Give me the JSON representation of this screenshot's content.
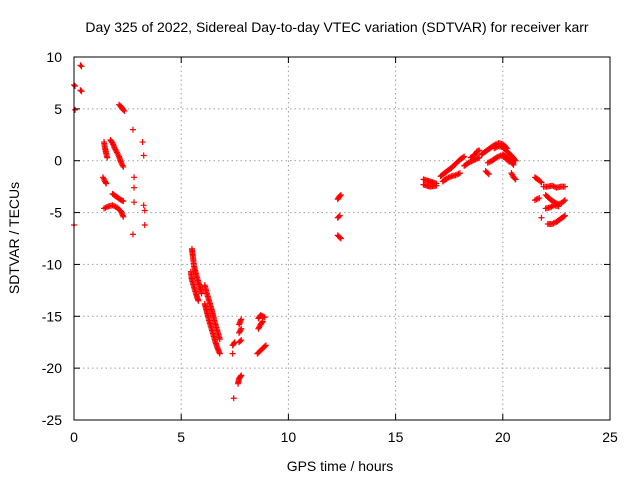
{
  "chart_data": {
    "type": "scatter",
    "title": "Day 325 of 2022, Sidereal Day-to-day VTEC variation (SDTVAR) for receiver karr",
    "xlabel": "GPS time / hours",
    "ylabel": "SDTVAR / TECUs",
    "xlim": [
      0,
      25
    ],
    "ylim": [
      -25,
      10
    ],
    "xticks": [
      0,
      5,
      10,
      15,
      20,
      25
    ],
    "yticks": [
      10,
      5,
      0,
      -5,
      -10,
      -15,
      -20,
      -25
    ],
    "grid": true,
    "marker": "plus",
    "color": "#ff0000",
    "series": [
      {
        "name": "SDTVAR",
        "tracks": [
          [
            [
              0.3,
              9.2
            ],
            [
              0.35,
              9.1
            ]
          ],
          [
            [
              0.0,
              7.3
            ],
            [
              0.05,
              7.2
            ]
          ],
          [
            [
              0.3,
              6.8
            ],
            [
              0.35,
              6.7
            ]
          ],
          [
            [
              0.05,
              4.9
            ]
          ],
          [
            [
              0.0,
              -6.2
            ]
          ],
          [
            [
              1.4,
              1.8
            ],
            [
              1.45,
              1.2
            ],
            [
              1.5,
              0.7
            ],
            [
              1.55,
              0.3
            ]
          ],
          [
            [
              1.7,
              2.0
            ],
            [
              1.8,
              1.7
            ],
            [
              1.9,
              1.2
            ],
            [
              2.0,
              0.8
            ],
            [
              2.1,
              0.4
            ],
            [
              2.2,
              -0.2
            ],
            [
              2.3,
              -0.6
            ]
          ],
          [
            [
              2.1,
              5.4
            ],
            [
              2.2,
              5.2
            ],
            [
              2.3,
              4.9
            ],
            [
              2.35,
              4.8
            ]
          ],
          [
            [
              1.35,
              -1.6
            ],
            [
              1.45,
              -2.0
            ],
            [
              1.5,
              -2.2
            ]
          ],
          [
            [
              1.8,
              -3.2
            ],
            [
              2.0,
              -3.5
            ],
            [
              2.2,
              -3.8
            ],
            [
              2.3,
              -3.9
            ]
          ],
          [
            [
              1.4,
              -4.6
            ],
            [
              1.6,
              -4.4
            ],
            [
              1.8,
              -4.3
            ],
            [
              2.0,
              -4.5
            ],
            [
              2.2,
              -4.9
            ],
            [
              2.3,
              -5.4
            ]
          ],
          [
            [
              2.75,
              3.0
            ]
          ],
          [
            [
              3.2,
              1.8
            ]
          ],
          [
            [
              3.25,
              0.5
            ]
          ],
          [
            [
              2.8,
              -1.6
            ]
          ],
          [
            [
              2.8,
              -2.6
            ]
          ],
          [
            [
              2.8,
              -4.0
            ]
          ],
          [
            [
              3.25,
              -4.3
            ]
          ],
          [
            [
              3.3,
              -4.8
            ]
          ],
          [
            [
              3.3,
              -6.2
            ]
          ],
          [
            [
              2.75,
              -7.1
            ]
          ],
          [
            [
              5.5,
              -8.5
            ],
            [
              5.55,
              -9.3
            ],
            [
              5.6,
              -10.2
            ],
            [
              5.7,
              -11.0
            ],
            [
              5.8,
              -11.7
            ],
            [
              5.9,
              -12.3
            ],
            [
              5.95,
              -12.8
            ]
          ],
          [
            [
              5.45,
              -10.7
            ],
            [
              5.5,
              -11.5
            ],
            [
              5.6,
              -12.2
            ],
            [
              5.7,
              -12.9
            ],
            [
              5.8,
              -13.5
            ]
          ],
          [
            [
              6.1,
              -13.8
            ],
            [
              6.2,
              -14.6
            ],
            [
              6.3,
              -15.4
            ],
            [
              6.4,
              -16.1
            ],
            [
              6.5,
              -16.8
            ],
            [
              6.6,
              -17.5
            ],
            [
              6.7,
              -18.1
            ],
            [
              6.8,
              -18.6
            ]
          ],
          [
            [
              6.1,
              -12.0
            ],
            [
              6.2,
              -12.8
            ],
            [
              6.3,
              -13.5
            ],
            [
              6.4,
              -14.2
            ],
            [
              6.5,
              -15.0
            ],
            [
              6.6,
              -15.8
            ],
            [
              6.7,
              -16.5
            ],
            [
              6.8,
              -17.2
            ]
          ],
          [
            [
              7.4,
              -17.8
            ],
            [
              7.5,
              -17.5
            ]
          ],
          [
            [
              7.4,
              -18.6
            ]
          ],
          [
            [
              7.45,
              -22.9
            ]
          ],
          [
            [
              7.7,
              -15.8
            ],
            [
              7.8,
              -15.3
            ]
          ],
          [
            [
              7.7,
              -16.6
            ],
            [
              7.8,
              -16.2
            ]
          ],
          [
            [
              7.7,
              -17.5
            ],
            [
              7.8,
              -17.3
            ]
          ],
          [
            [
              7.65,
              -21.5
            ],
            [
              7.7,
              -21.0
            ],
            [
              7.8,
              -20.7
            ]
          ],
          [
            [
              8.6,
              -15.2
            ],
            [
              8.7,
              -14.9
            ],
            [
              8.8,
              -15.0
            ],
            [
              8.9,
              -15.1
            ]
          ],
          [
            [
              8.6,
              -16.2
            ],
            [
              8.7,
              -15.8
            ],
            [
              8.8,
              -15.5
            ]
          ],
          [
            [
              8.55,
              -18.6
            ],
            [
              8.7,
              -18.3
            ],
            [
              8.85,
              -18.0
            ],
            [
              8.95,
              -17.8
            ]
          ],
          [
            [
              12.3,
              -3.7
            ],
            [
              12.4,
              -3.4
            ],
            [
              12.45,
              -3.3
            ]
          ],
          [
            [
              12.3,
              -5.5
            ],
            [
              12.4,
              -5.3
            ]
          ],
          [
            [
              12.3,
              -7.2
            ],
            [
              12.4,
              -7.4
            ],
            [
              12.45,
              -7.5
            ]
          ],
          [
            [
              16.3,
              -1.8
            ],
            [
              16.6,
              -2.0
            ],
            [
              16.9,
              -2.2
            ]
          ],
          [
            [
              16.3,
              -2.3
            ],
            [
              16.6,
              -2.5
            ],
            [
              16.9,
              -2.4
            ]
          ],
          [
            [
              17.1,
              -1.5
            ],
            [
              17.4,
              -1.0
            ],
            [
              17.6,
              -0.7
            ],
            [
              17.8,
              -0.3
            ],
            [
              18.0,
              0.1
            ],
            [
              18.2,
              0.4
            ]
          ],
          [
            [
              17.2,
              -2.0
            ],
            [
              17.4,
              -1.7
            ],
            [
              17.6,
              -1.5
            ],
            [
              17.8,
              -1.4
            ],
            [
              18.0,
              -1.2
            ]
          ],
          [
            [
              18.2,
              -0.5
            ],
            [
              18.4,
              -0.2
            ],
            [
              18.6,
              0.0
            ],
            [
              18.8,
              0.2
            ],
            [
              18.9,
              0.3
            ]
          ],
          [
            [
              18.5,
              0.3
            ],
            [
              18.6,
              0.4
            ],
            [
              18.7,
              0.6
            ],
            [
              18.8,
              0.9
            ],
            [
              18.9,
              1.0
            ]
          ],
          [
            [
              19.0,
              0.6
            ],
            [
              19.2,
              0.9
            ],
            [
              19.4,
              1.2
            ],
            [
              19.6,
              1.5
            ],
            [
              19.8,
              1.7
            ],
            [
              20.0,
              1.6
            ],
            [
              20.2,
              1.2
            ]
          ],
          [
            [
              19.3,
              -0.2
            ],
            [
              19.5,
              0.0
            ],
            [
              19.7,
              0.3
            ],
            [
              19.9,
              0.5
            ],
            [
              20.1,
              0.3
            ],
            [
              20.3,
              -0.1
            ]
          ],
          [
            [
              19.6,
              1.2
            ],
            [
              19.8,
              1.4
            ],
            [
              20.0,
              1.3
            ],
            [
              20.2,
              0.9
            ],
            [
              20.4,
              0.5
            ],
            [
              20.6,
              0.0
            ]
          ],
          [
            [
              19.2,
              -1.0
            ],
            [
              19.35,
              -1.3
            ]
          ],
          [
            [
              20.0,
              0.6
            ],
            [
              20.2,
              0.3
            ],
            [
              20.4,
              -0.1
            ],
            [
              20.5,
              -0.4
            ]
          ],
          [
            [
              20.4,
              -1.2
            ],
            [
              20.5,
              -1.6
            ],
            [
              20.6,
              -1.8
            ]
          ],
          [
            [
              21.5,
              -1.6
            ],
            [
              21.7,
              -1.9
            ],
            [
              21.8,
              -2.1
            ]
          ],
          [
            [
              21.5,
              -3.8
            ],
            [
              21.7,
              -3.6
            ]
          ],
          [
            [
              21.9,
              -2.5
            ],
            [
              22.1,
              -2.5
            ],
            [
              22.3,
              -2.4
            ],
            [
              22.5,
              -2.6
            ],
            [
              22.7,
              -2.5
            ],
            [
              22.9,
              -2.5
            ]
          ],
          [
            [
              22.0,
              -3.3
            ],
            [
              22.2,
              -3.7
            ],
            [
              22.4,
              -4.0
            ],
            [
              22.6,
              -4.2
            ],
            [
              22.8,
              -4.0
            ],
            [
              22.9,
              -3.8
            ]
          ],
          [
            [
              22.0,
              -4.6
            ],
            [
              22.2,
              -4.5
            ],
            [
              22.4,
              -4.3
            ],
            [
              22.6,
              -4.4
            ]
          ],
          [
            [
              21.8,
              -5.5
            ]
          ],
          [
            [
              22.1,
              -6.1
            ],
            [
              22.3,
              -6.1
            ],
            [
              22.5,
              -5.9
            ],
            [
              22.7,
              -5.6
            ],
            [
              22.9,
              -5.3
            ]
          ]
        ]
      }
    ]
  }
}
